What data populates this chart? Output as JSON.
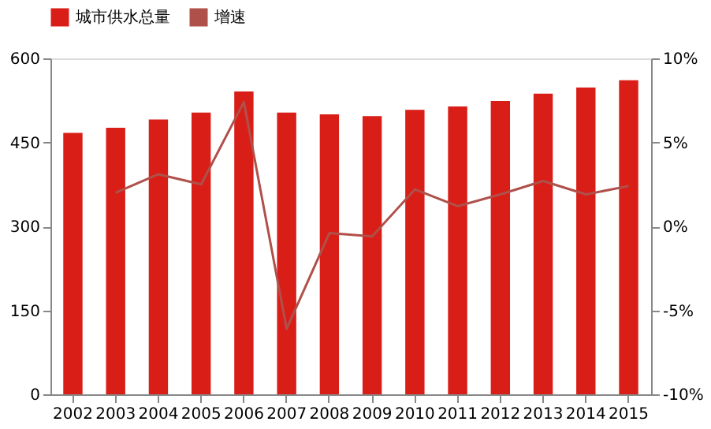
{
  "chart_data": {
    "type": "bar",
    "categories": [
      "2002",
      "2003",
      "2004",
      "2005",
      "2006",
      "2007",
      "2008",
      "2009",
      "2010",
      "2011",
      "2012",
      "2013",
      "2014",
      "2015"
    ],
    "series": [
      {
        "name": "城市供水总量",
        "color": "#d91e18",
        "values": [
          467,
          476,
          491,
          503,
          541,
          503,
          500,
          497,
          508,
          514,
          524,
          537,
          548,
          561
        ]
      },
      {
        "name": "增速",
        "type": "line",
        "axis": "y2",
        "color": "#b0504a",
        "values": [
          null,
          2.0,
          3.1,
          2.5,
          7.4,
          -6.1,
          -0.4,
          -0.6,
          2.2,
          1.2,
          1.9,
          2.7,
          1.9,
          2.4
        ]
      }
    ],
    "ylim": [
      0,
      600
    ],
    "yticks": [
      0,
      150,
      300,
      450,
      600
    ],
    "y2lim": [
      -10,
      10
    ],
    "y2ticks": [
      {
        "value": -10,
        "label": "-10%"
      },
      {
        "value": -5,
        "label": "-5%"
      },
      {
        "value": 0,
        "label": "0%"
      },
      {
        "value": 5,
        "label": "5%"
      },
      {
        "value": 10,
        "label": "10%"
      }
    ],
    "legend": "top",
    "grid": false
  }
}
